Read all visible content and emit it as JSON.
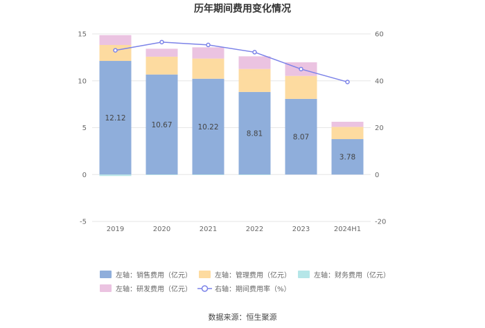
{
  "chart_data": {
    "type": "bar",
    "title": "历年期间费用变化情况",
    "categories": [
      "2019",
      "2020",
      "2021",
      "2022",
      "2023",
      "2024H1"
    ],
    "stacked": true,
    "y_left": {
      "min": -5,
      "max": 15,
      "ticks": [
        "-5",
        "0",
        "5",
        "10",
        "15"
      ]
    },
    "y_right": {
      "min": -20,
      "max": 60,
      "ticks": [
        "-20",
        "0",
        "20",
        "40",
        "60"
      ]
    },
    "series": [
      {
        "name": "左轴：销售费用（亿元）",
        "type": "bar",
        "axis": "left",
        "color": "#8faedb",
        "values": [
          12.12,
          10.67,
          10.22,
          8.81,
          8.07,
          3.78
        ],
        "labels": [
          "12.12",
          "10.67",
          "10.22",
          "8.81",
          "8.07",
          "3.78"
        ]
      },
      {
        "name": "左轴：管理费用（亿元）",
        "type": "bar",
        "axis": "left",
        "color": "#fddba0",
        "values": [
          1.7,
          1.9,
          2.15,
          2.45,
          2.45,
          1.3
        ]
      },
      {
        "name": "左轴：财务费用（亿元）",
        "type": "bar",
        "axis": "left",
        "color": "#b5e6e8",
        "values": [
          -0.15,
          -0.05,
          -0.05,
          -0.05,
          0.0,
          0.0
        ]
      },
      {
        "name": "左轴：研发费用（亿元）",
        "type": "bar",
        "axis": "left",
        "color": "#ebc3e1",
        "values": [
          1.05,
          0.85,
          1.2,
          1.35,
          1.45,
          0.55
        ]
      },
      {
        "name": "右轴：期间费用率（%）",
        "type": "line",
        "axis": "right",
        "color": "#7b82e8",
        "values": [
          53.0,
          56.5,
          55.3,
          52.2,
          45.0,
          39.5
        ]
      }
    ],
    "grid": true,
    "legend_position": "bottom"
  },
  "source": "数据来源：恒生聚源"
}
